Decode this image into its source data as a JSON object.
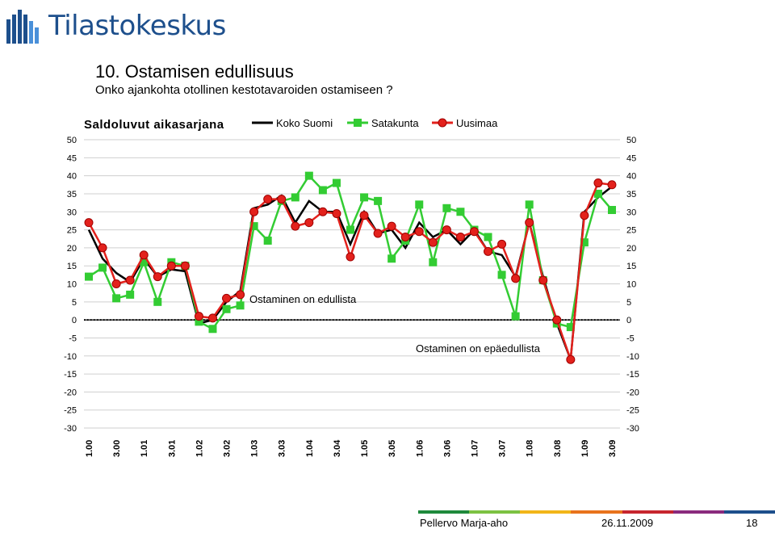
{
  "brand": {
    "name": "Tilastokeskus"
  },
  "slide": {
    "title": "10. Ostamisen edullisuus",
    "subtitle": "Onko ajankohta otollinen kestotavaroiden ostamiseen ?"
  },
  "footer": {
    "author": "Pellervo Marja-aho",
    "date": "26.11.2009",
    "page": "18",
    "bar_colors": [
      "#1f8a3c",
      "#7cc242",
      "#f2b619",
      "#e8731c",
      "#c7262e",
      "#8a2a7d",
      "#1d4f8c"
    ]
  },
  "chart_data": {
    "type": "line",
    "title": "Saldoluvut aikasarjana",
    "ylim": [
      -30,
      50
    ],
    "yticks": [
      -30,
      -25,
      -20,
      -15,
      -10,
      -5,
      0,
      5,
      10,
      15,
      20,
      25,
      30,
      35,
      40,
      45,
      50
    ],
    "grid": true,
    "legend": "top",
    "x": [
      "1.00",
      "2.00",
      "3.00",
      "4.00",
      "1.01",
      "2.01",
      "3.01",
      "4.01",
      "1.02",
      "2.02",
      "3.02",
      "4.02",
      "1.03",
      "2.03",
      "3.03",
      "4.03",
      "1.04",
      "2.04",
      "3.04",
      "4.04",
      "1.05",
      "2.05",
      "3.05",
      "4.05",
      "1.06",
      "2.06",
      "3.06",
      "4.06",
      "1.07",
      "2.07",
      "3.07",
      "4.07",
      "1.08",
      "2.08",
      "3.08",
      "4.08",
      "1.09",
      "2.09",
      "3.09"
    ],
    "xtick_labels": [
      "1.00",
      "3.00",
      "1.01",
      "3.01",
      "1.02",
      "3.02",
      "1.03",
      "3.03",
      "1.04",
      "3.04",
      "1.05",
      "3.05",
      "1.06",
      "3.06",
      "1.07",
      "3.07",
      "1.08",
      "3.08",
      "1.09",
      "3.09"
    ],
    "series": [
      {
        "name": "Koko Suomi",
        "color": "#000000",
        "marker": "none",
        "values": [
          25,
          17,
          13,
          10.5,
          17,
          12,
          14,
          13.5,
          -1,
          0,
          5,
          8,
          31,
          32,
          34.5,
          27,
          33,
          30,
          30,
          21,
          30,
          24,
          25,
          20,
          27,
          23,
          25,
          21,
          25,
          19,
          18,
          12,
          27,
          12,
          -1,
          -11,
          30,
          34,
          37
        ]
      },
      {
        "name": "Satakunta",
        "color": "#33cc33",
        "marker": "square",
        "values": [
          12,
          14.5,
          6,
          7,
          16,
          5,
          16,
          15,
          -0.5,
          -2.5,
          3,
          4,
          26,
          22,
          33,
          34,
          40,
          36,
          38,
          25,
          34,
          33,
          17,
          22,
          32,
          16,
          31,
          30,
          25,
          23,
          12.5,
          1,
          32,
          11,
          -1,
          -2,
          21.5,
          35,
          30.5
        ]
      },
      {
        "name": "Uusimaa",
        "color": "#e3211c",
        "marker": "circle",
        "values": [
          27,
          20,
          10,
          11,
          18,
          12,
          15,
          15,
          1,
          0.5,
          6,
          7,
          30,
          33.5,
          33.5,
          26,
          27,
          30,
          29.5,
          17.5,
          29,
          24,
          26,
          23,
          24.5,
          21.5,
          25,
          23,
          24.5,
          19,
          21,
          11.5,
          27,
          11,
          0,
          -11,
          29,
          38,
          37.5
        ]
      }
    ],
    "annotations": [
      "Ostaminen on edullista",
      "Ostaminen on epäedullista"
    ]
  }
}
